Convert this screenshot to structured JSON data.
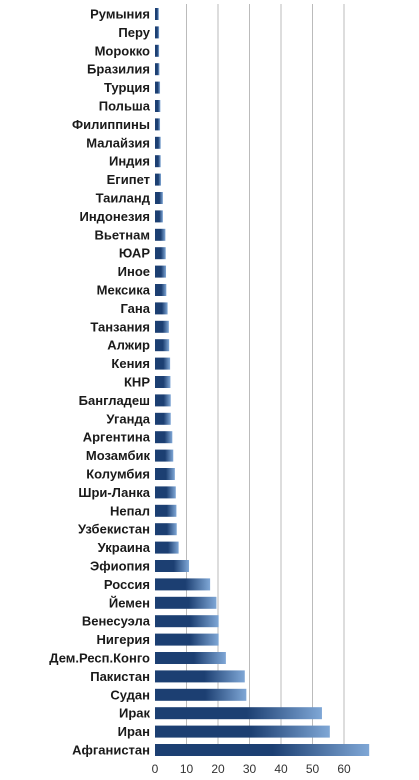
{
  "chart_data": {
    "type": "bar",
    "orientation": "horizontal",
    "categories": [
      "Румыния",
      "Перу",
      "Морокко",
      "Бразилия",
      "Турция",
      "Польша",
      "Филиппины",
      "Малайзия",
      "Индия",
      "Египет",
      "Таиланд",
      "Индонезия",
      "Вьетнам",
      "ЮАР",
      "Иное",
      "Мексика",
      "Гана",
      "Танзания",
      "Алжир",
      "Кения",
      "КНР",
      "Бангладеш",
      "Уганда",
      "Аргентина",
      "Мозамбик",
      "Колумбия",
      "Шри-Ланка",
      "Непал",
      "Узбекистан",
      "Украина",
      "Эфиопия",
      "Россия",
      "Йемен",
      "Венесуэла",
      "Нигерия",
      "Дем.Респ.Конго",
      "Пакистан",
      "Судан",
      "Ирак",
      "Иран",
      "Афганистан"
    ],
    "values": [
      1.2,
      1.3,
      1.3,
      1.4,
      1.6,
      1.7,
      1.6,
      1.8,
      1.8,
      1.9,
      2.5,
      2.5,
      3.3,
      3.4,
      3.5,
      3.6,
      4.0,
      4.4,
      4.5,
      4.8,
      4.9,
      5.0,
      5.0,
      5.5,
      5.8,
      6.3,
      6.6,
      6.8,
      6.9,
      7.5,
      10.8,
      17.5,
      19.5,
      20.2,
      20.2,
      22.5,
      28.5,
      29.0,
      53.0,
      55.5,
      68.0
    ],
    "xticks": [
      0,
      10,
      20,
      30,
      40,
      50,
      60
    ],
    "xlim": [
      0,
      70
    ],
    "grid": true,
    "title": "",
    "xlabel": "",
    "ylabel": "",
    "colors": {
      "bar_dark": "#1c3f72",
      "bar_light": "#7fa7d6",
      "grid": "#bbbbbb"
    }
  }
}
